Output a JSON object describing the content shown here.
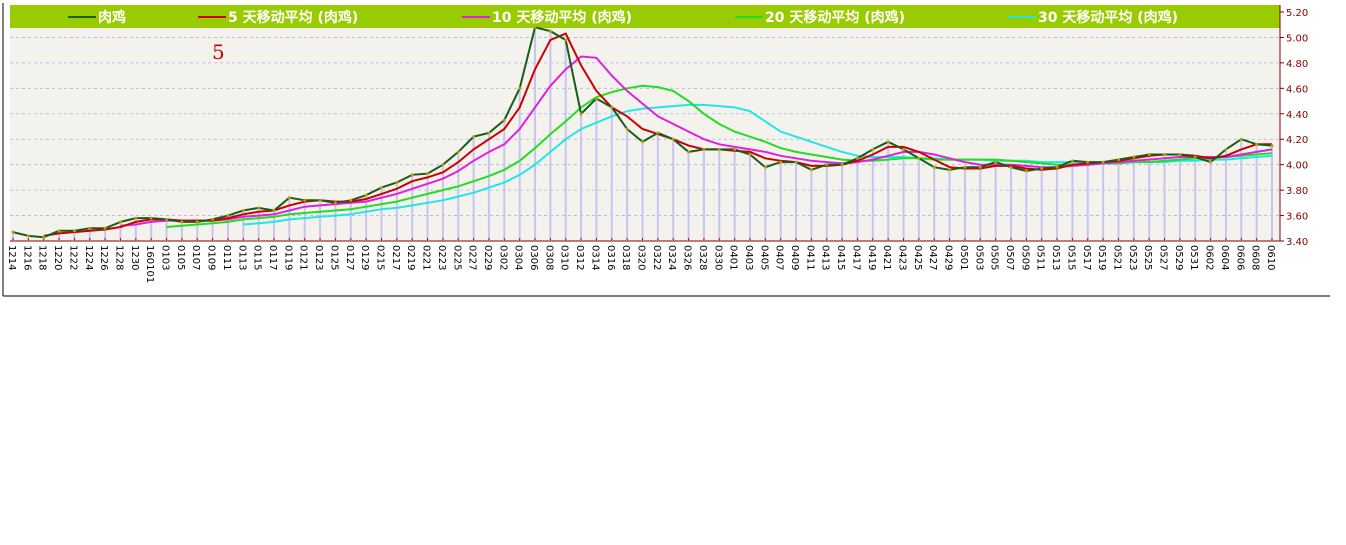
{
  "chart_data": {
    "type": "line",
    "annotation": "5",
    "categories": [
      "1214",
      "1216",
      "1218",
      "1220",
      "1222",
      "1224",
      "1226",
      "1228",
      "1230",
      "160101",
      "0103",
      "0105",
      "0107",
      "0109",
      "0111",
      "0113",
      "0115",
      "0117",
      "0119",
      "0121",
      "0123",
      "0125",
      "0127",
      "0129",
      "0215",
      "0217",
      "0219",
      "0221",
      "0223",
      "0225",
      "0227",
      "0229",
      "0302",
      "0304",
      "0306",
      "0308",
      "0310",
      "0312",
      "0314",
      "0316",
      "0318",
      "0320",
      "0322",
      "0324",
      "0326",
      "0328",
      "0330",
      "0401",
      "0403",
      "0405",
      "0407",
      "0409",
      "0411",
      "0413",
      "0415",
      "0417",
      "0419",
      "0421",
      "0423",
      "0425",
      "0427",
      "0429",
      "0501",
      "0503",
      "0505",
      "0507",
      "0509",
      "0511",
      "0513",
      "0515",
      "0517",
      "0519",
      "0521",
      "0523",
      "0525",
      "0527",
      "0529",
      "0531",
      "0602",
      "0604",
      "0606",
      "0608",
      "0610"
    ],
    "series": [
      {
        "name": "肉鸡",
        "color": "#1a5c1a",
        "values": [
          3.47,
          3.44,
          3.43,
          3.48,
          3.48,
          3.5,
          3.5,
          3.55,
          3.58,
          3.58,
          3.57,
          3.55,
          3.55,
          3.57,
          3.6,
          3.64,
          3.66,
          3.64,
          3.74,
          3.72,
          3.72,
          3.7,
          3.72,
          3.76,
          3.82,
          3.86,
          3.92,
          3.93,
          4.0,
          4.1,
          4.22,
          4.25,
          4.35,
          4.6,
          5.08,
          5.05,
          4.98,
          4.4,
          4.52,
          4.45,
          4.28,
          4.18,
          4.25,
          4.2,
          4.1,
          4.12,
          4.12,
          4.12,
          4.08,
          3.98,
          4.02,
          4.02,
          3.96,
          4.0,
          4.0,
          4.05,
          4.12,
          4.18,
          4.12,
          4.05,
          3.98,
          3.96,
          3.98,
          3.98,
          4.02,
          3.98,
          3.95,
          3.97,
          3.98,
          4.03,
          4.02,
          4.02,
          4.04,
          4.06,
          4.08,
          4.08,
          4.08,
          4.06,
          4.02,
          4.12,
          4.2,
          4.16,
          4.15
        ]
      },
      {
        "name": "5 天移动平均 (肉鸡)",
        "color": "#cc0000",
        "values": [
          null,
          null,
          3.44,
          3.46,
          3.47,
          3.48,
          3.49,
          3.51,
          3.55,
          3.57,
          3.57,
          3.56,
          3.56,
          3.56,
          3.58,
          3.61,
          3.63,
          3.64,
          3.68,
          3.71,
          3.72,
          3.71,
          3.71,
          3.73,
          3.77,
          3.81,
          3.87,
          3.9,
          3.94,
          4.02,
          4.12,
          4.2,
          4.28,
          4.45,
          4.75,
          4.98,
          5.03,
          4.78,
          4.58,
          4.45,
          4.38,
          4.28,
          4.24,
          4.2,
          4.15,
          4.12,
          4.12,
          4.11,
          4.1,
          4.05,
          4.03,
          4.02,
          3.99,
          3.99,
          4.0,
          4.03,
          4.08,
          4.14,
          4.14,
          4.1,
          4.04,
          3.98,
          3.97,
          3.97,
          3.99,
          3.99,
          3.97,
          3.96,
          3.97,
          4.0,
          4.01,
          4.02,
          4.03,
          4.05,
          4.07,
          4.08,
          4.08,
          4.07,
          4.05,
          4.07,
          4.12,
          4.16,
          4.16
        ]
      },
      {
        "name": "10 天移动平均 (肉鸡)",
        "color": "#e020e0",
        "values": [
          null,
          null,
          null,
          null,
          null,
          null,
          null,
          3.52,
          3.53,
          3.55,
          3.56,
          3.56,
          3.56,
          3.56,
          3.57,
          3.59,
          3.6,
          3.61,
          3.64,
          3.67,
          3.68,
          3.69,
          3.7,
          3.71,
          3.74,
          3.77,
          3.81,
          3.85,
          3.89,
          3.95,
          4.03,
          4.1,
          4.16,
          4.28,
          4.45,
          4.62,
          4.75,
          4.85,
          4.84,
          4.7,
          4.58,
          4.48,
          4.38,
          4.32,
          4.26,
          4.2,
          4.16,
          4.14,
          4.12,
          4.1,
          4.07,
          4.05,
          4.03,
          4.02,
          4.01,
          4.02,
          4.04,
          4.07,
          4.1,
          4.1,
          4.08,
          4.05,
          4.02,
          4.0,
          4.0,
          4.0,
          3.99,
          3.98,
          3.98,
          3.99,
          4.0,
          4.01,
          4.02,
          4.03,
          4.04,
          4.05,
          4.06,
          4.06,
          4.06,
          4.06,
          4.08,
          4.1,
          4.12
        ]
      },
      {
        "name": "20 天移动平均 (肉鸡)",
        "color": "#22dd22",
        "values": [
          null,
          null,
          null,
          null,
          null,
          null,
          null,
          null,
          null,
          null,
          3.51,
          3.52,
          3.53,
          3.54,
          3.55,
          3.57,
          3.58,
          3.59,
          3.61,
          3.62,
          3.63,
          3.64,
          3.65,
          3.67,
          3.69,
          3.71,
          3.74,
          3.77,
          3.8,
          3.83,
          3.87,
          3.91,
          3.96,
          4.03,
          4.13,
          4.24,
          4.34,
          4.45,
          4.53,
          4.57,
          4.6,
          4.62,
          4.61,
          4.58,
          4.5,
          4.4,
          4.32,
          4.26,
          4.22,
          4.18,
          4.13,
          4.1,
          4.08,
          4.06,
          4.04,
          4.03,
          4.03,
          4.04,
          4.05,
          4.05,
          4.04,
          4.04,
          4.04,
          4.04,
          4.04,
          4.03,
          4.02,
          4.01,
          4.0,
          4.0,
          4.0,
          4.01,
          4.01,
          4.02,
          4.02,
          4.03,
          4.04,
          4.05,
          4.05,
          4.06,
          4.07,
          4.08,
          4.09
        ]
      },
      {
        "name": "30 天移动平均 (肉鸡)",
        "color": "#22e6e6",
        "values": [
          null,
          null,
          null,
          null,
          null,
          null,
          null,
          null,
          null,
          null,
          null,
          null,
          null,
          null,
          null,
          3.53,
          3.54,
          3.55,
          3.57,
          3.58,
          3.59,
          3.6,
          3.61,
          3.63,
          3.65,
          3.66,
          3.68,
          3.7,
          3.72,
          3.75,
          3.78,
          3.82,
          3.86,
          3.92,
          4.0,
          4.1,
          4.2,
          4.28,
          4.33,
          4.38,
          4.42,
          4.44,
          4.45,
          4.46,
          4.47,
          4.47,
          4.46,
          4.45,
          4.42,
          4.34,
          4.26,
          4.22,
          4.18,
          4.14,
          4.1,
          4.07,
          4.06,
          4.06,
          4.06,
          4.05,
          4.05,
          4.04,
          4.04,
          4.04,
          4.03,
          4.03,
          4.03,
          4.02,
          4.02,
          4.02,
          4.02,
          4.02,
          4.02,
          4.02,
          4.02,
          4.02,
          4.03,
          4.03,
          4.04,
          4.04,
          4.05,
          4.06,
          4.07
        ]
      }
    ],
    "ylim": [
      3.4,
      5.2
    ],
    "yticks": [
      {
        "value": 3.4,
        "label": "3.40"
      },
      {
        "value": 3.6,
        "label": "3.60"
      },
      {
        "value": 3.8,
        "label": "3.80"
      },
      {
        "value": 4.0,
        "label": "4.00"
      },
      {
        "value": 4.2,
        "label": "4.20"
      },
      {
        "value": 4.4,
        "label": "4.40"
      },
      {
        "value": 4.6,
        "label": "4.60"
      },
      {
        "value": 4.8,
        "label": "4.80"
      },
      {
        "value": 5.0,
        "label": "5.00"
      },
      {
        "value": 5.2,
        "label": "5.20"
      }
    ],
    "grid": true
  }
}
